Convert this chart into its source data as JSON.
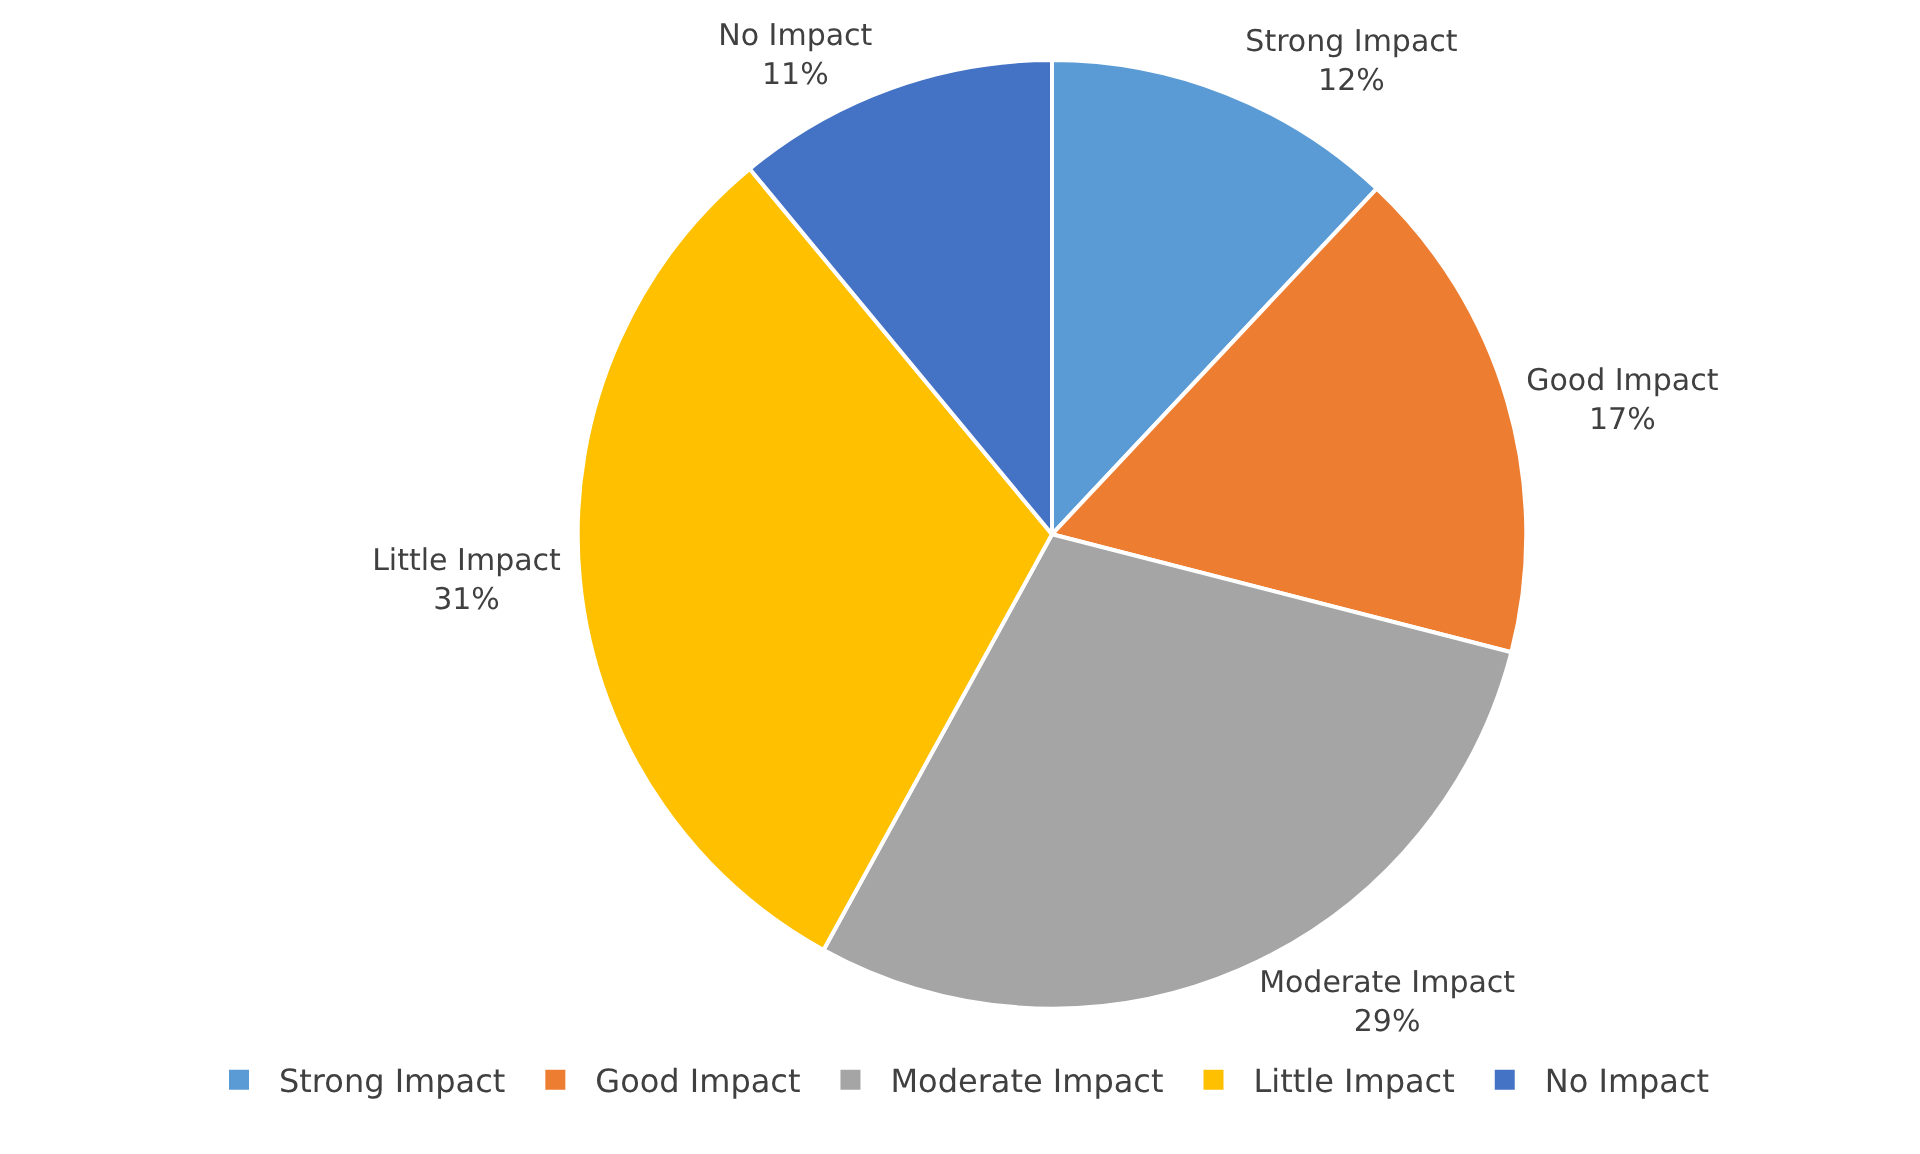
{
  "chart_data": {
    "type": "pie",
    "categories": [
      "Strong Impact",
      "Good Impact",
      "Moderate Impact",
      "Little Impact",
      "No Impact"
    ],
    "values": [
      12,
      17,
      29,
      31,
      11
    ],
    "value_labels": [
      "12%",
      "17%",
      "29%",
      "31%",
      "11%"
    ],
    "colors": [
      "#5b9bd5",
      "#ed7d31",
      "#a5a5a5",
      "#ffc000",
      "#4472c4"
    ],
    "legend": "bottom"
  }
}
